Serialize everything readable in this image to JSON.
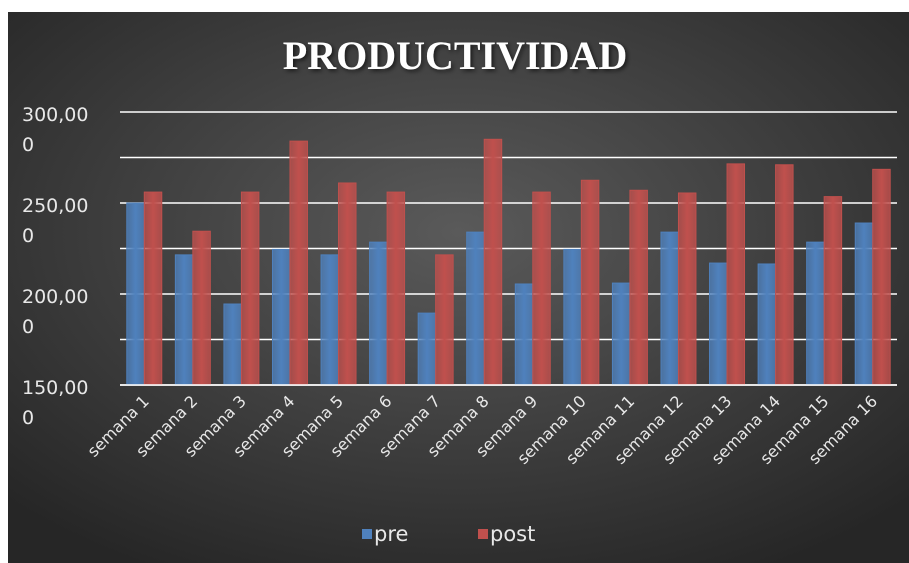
{
  "chart_data": {
    "type": "bar",
    "title": "PRODUCTIVIDAD",
    "categories": [
      "semana 1",
      "semana 2",
      "semana 3",
      "semana 4",
      "semana 5",
      "semana 6",
      "semana 7",
      "semana 8",
      "semana 9",
      "semana 10",
      "semana 11",
      "semana 12",
      "semana 13",
      "semana 14",
      "semana 15",
      "semana 16"
    ],
    "series": [
      {
        "name": "pre",
        "color": "#4f81bd",
        "values": [
          250000,
          221500,
          194500,
          224500,
          221500,
          228500,
          189500,
          234000,
          205500,
          224500,
          206000,
          234000,
          217000,
          216500,
          228500,
          239000
        ]
      },
      {
        "name": "post",
        "color": "#c0504d",
        "values": [
          256000,
          234500,
          256000,
          284000,
          261000,
          256000,
          221500,
          285000,
          256000,
          262500,
          257000,
          255500,
          271500,
          271000,
          253500,
          268500
        ]
      }
    ],
    "ylim": [
      150000,
      300000
    ],
    "yticks": [
      {
        "value": 150000,
        "label": "150,000"
      },
      {
        "value": 200000,
        "label": "200,000"
      },
      {
        "value": 250000,
        "label": "250,000"
      },
      {
        "value": 300000,
        "label": "300,000"
      }
    ],
    "minor_yticks": [
      175000,
      225000,
      275000
    ],
    "grid": true,
    "legend": "bottom"
  }
}
